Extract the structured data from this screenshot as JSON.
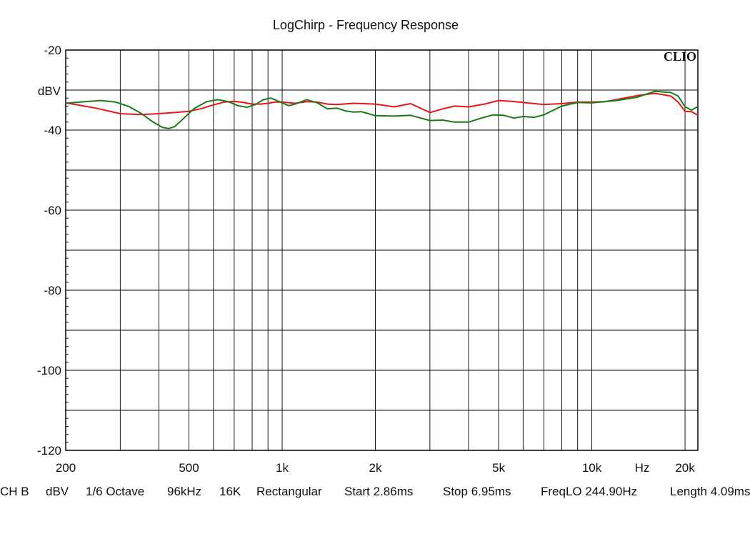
{
  "chart_data": {
    "type": "line",
    "title": "LogChirp - Frequency Response",
    "logo": "CLIO",
    "ylabel": "dBV",
    "xunit": "Hz",
    "xscale": "log",
    "xlim": [
      200,
      22000
    ],
    "ylim": [
      -120,
      -20
    ],
    "grid": true,
    "y_ticks": [
      -20,
      -40,
      -60,
      -80,
      -100,
      -120
    ],
    "y_tick_labels": [
      "-20",
      "-40",
      "-60",
      "-80",
      "-100",
      "-120"
    ],
    "x_ticks": [
      200,
      500,
      1000,
      2000,
      5000,
      10000,
      20000
    ],
    "x_tick_labels": [
      "200",
      "500",
      "1k",
      "2k",
      "5k",
      "10k",
      "20k"
    ],
    "series": [
      {
        "color": "#e8141b",
        "x": [
          200,
          250,
          300,
          350,
          400,
          450,
          500,
          550,
          600,
          650,
          700,
          750,
          800,
          850,
          900,
          950,
          1000,
          1100,
          1200,
          1300,
          1400,
          1500,
          1700,
          2000,
          2300,
          2600,
          3000,
          3300,
          3600,
          4000,
          4500,
          5000,
          5500,
          6000,
          7000,
          8000,
          9000,
          10000,
          11000,
          12000,
          14000,
          16000,
          18000,
          19000,
          20000,
          21000,
          22000
        ],
        "y": [
          -33.2,
          -34.5,
          -35.9,
          -36.1,
          -35.9,
          -35.6,
          -35.3,
          -34.6,
          -33.7,
          -33.0,
          -32.8,
          -33.1,
          -33.5,
          -33.5,
          -33.3,
          -33.0,
          -33.0,
          -33.3,
          -32.9,
          -33.0,
          -33.5,
          -33.6,
          -33.3,
          -33.5,
          -34.2,
          -33.4,
          -35.6,
          -34.7,
          -34.0,
          -34.2,
          -33.5,
          -32.6,
          -32.8,
          -33.1,
          -33.6,
          -33.4,
          -33.0,
          -33.0,
          -32.9,
          -32.4,
          -31.4,
          -30.8,
          -31.5,
          -33.0,
          -35.3,
          -35.4,
          -36.3
        ]
      },
      {
        "color": "#1a7a1a",
        "x": [
          200,
          230,
          260,
          290,
          320,
          350,
          380,
          410,
          430,
          450,
          480,
          520,
          570,
          620,
          670,
          720,
          770,
          820,
          870,
          920,
          960,
          1000,
          1050,
          1100,
          1200,
          1300,
          1400,
          1500,
          1600,
          1700,
          1800,
          2000,
          2300,
          2600,
          3000,
          3300,
          3600,
          4000,
          4400,
          4800,
          5200,
          5600,
          6000,
          6500,
          7000,
          8000,
          9000,
          10000,
          12000,
          14000,
          16000,
          18000,
          19000,
          20000,
          21000,
          22000
        ],
        "y": [
          -33.3,
          -32.9,
          -32.6,
          -33.0,
          -34.1,
          -35.8,
          -37.8,
          -39.3,
          -39.6,
          -39.1,
          -37.1,
          -34.6,
          -32.9,
          -32.4,
          -32.9,
          -33.9,
          -34.3,
          -33.6,
          -32.4,
          -32.0,
          -32.6,
          -33.2,
          -33.9,
          -33.5,
          -32.4,
          -33.2,
          -34.7,
          -34.5,
          -35.2,
          -35.5,
          -35.4,
          -36.4,
          -36.5,
          -36.3,
          -37.6,
          -37.5,
          -38.0,
          -38.0,
          -37.0,
          -36.2,
          -36.3,
          -37.0,
          -36.6,
          -36.8,
          -36.2,
          -34.0,
          -33.1,
          -33.2,
          -32.6,
          -31.8,
          -30.3,
          -30.6,
          -31.5,
          -34.2,
          -35.0,
          -34.1
        ]
      }
    ]
  },
  "footer": {
    "channel": "CH B",
    "unit": "dBV",
    "smoothing": "1/6 Octave",
    "sample_rate": "96kHz",
    "size": "16K",
    "window": "Rectangular",
    "start": "Start 2.86ms",
    "stop": "Stop 6.95ms",
    "freq_lo": "FreqLO 244.90Hz",
    "length": "Length 4.09ms"
  }
}
